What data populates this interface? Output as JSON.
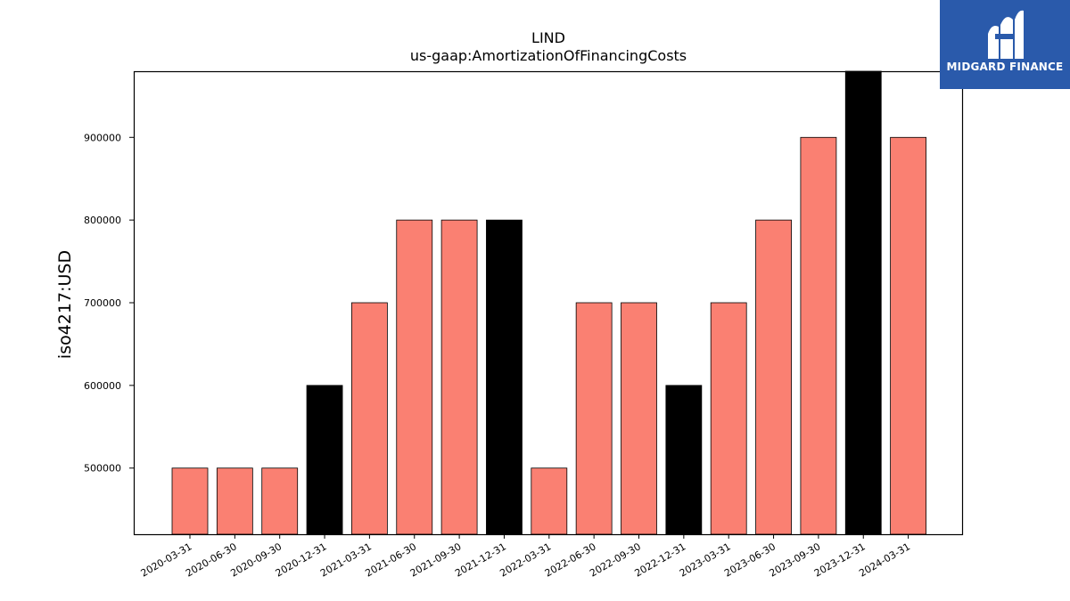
{
  "chart_data": {
    "type": "bar",
    "title": "LIND",
    "subtitle": "us-gaap:AmortizationOfFinancingCosts",
    "xlabel": "",
    "ylabel": "iso4217:USD",
    "categories": [
      "2020-03-31",
      "2020-06-30",
      "2020-09-30",
      "2020-12-31",
      "2021-03-31",
      "2021-06-30",
      "2021-09-30",
      "2021-12-31",
      "2022-03-31",
      "2022-06-30",
      "2022-09-30",
      "2022-12-31",
      "2023-03-31",
      "2023-06-30",
      "2023-09-30",
      "2023-12-31",
      "2024-03-31"
    ],
    "values": [
      500000,
      500000,
      500000,
      600000,
      700000,
      800000,
      800000,
      800000,
      500000,
      700000,
      700000,
      600000,
      700000,
      800000,
      900000,
      1000000,
      900000
    ],
    "ylim": [
      420000,
      980000
    ],
    "yticks": [
      500000,
      600000,
      700000,
      800000,
      900000
    ],
    "colors": {
      "quarter": "#fa8072",
      "year_end": "#000000",
      "edge": "#000000"
    },
    "grid": false,
    "legend": "none"
  },
  "logo": {
    "text": "MIDGARD FINANCE",
    "icon": "midgard-logo-icon",
    "background": "#2a5aab"
  }
}
